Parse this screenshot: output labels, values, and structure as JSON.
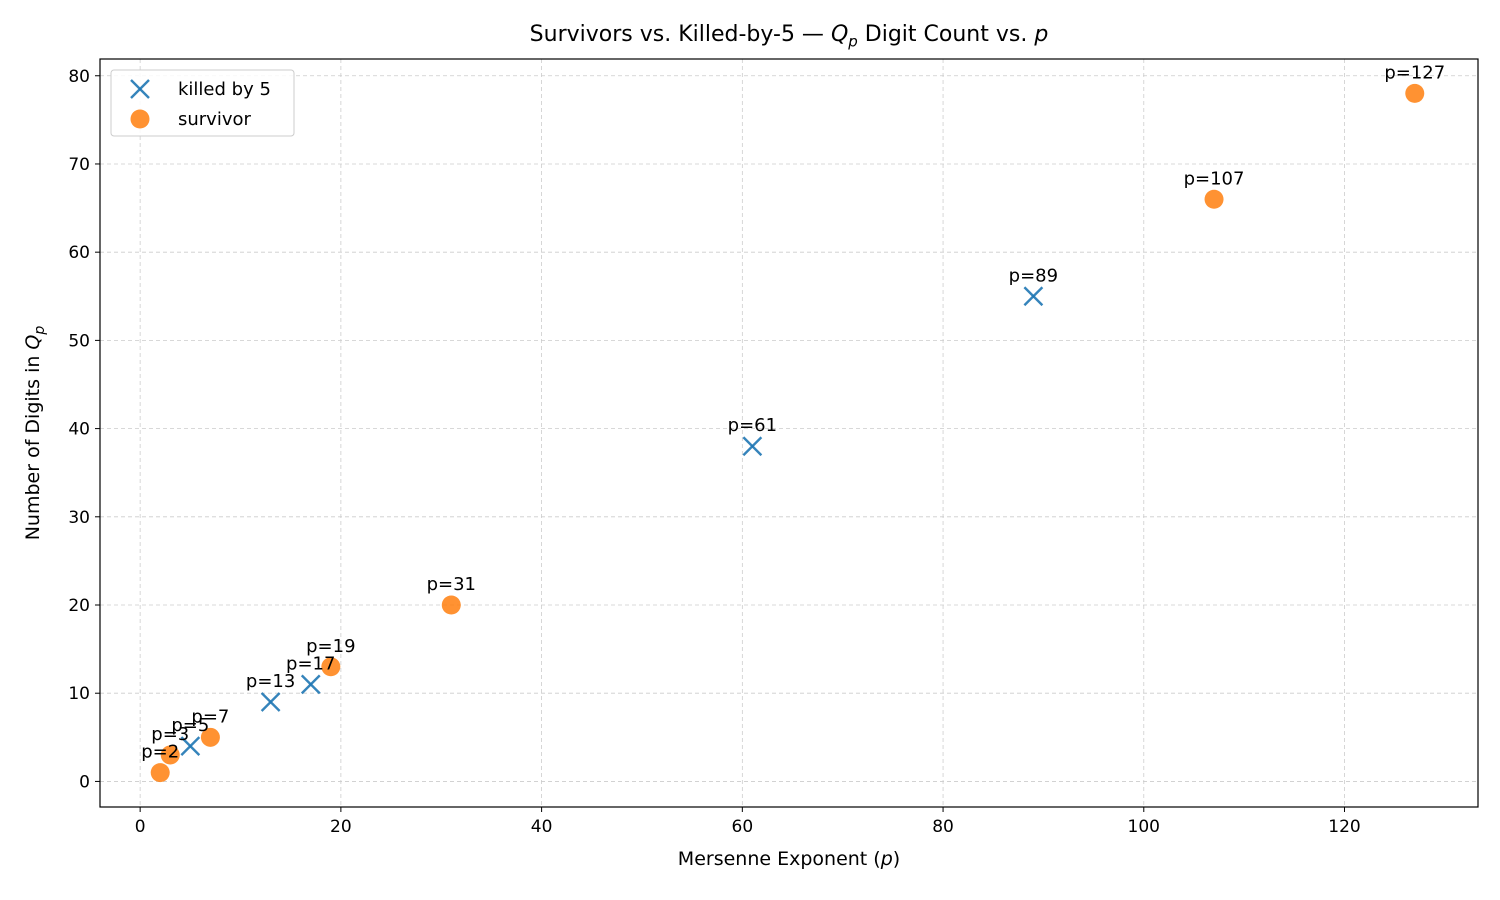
{
  "chart_data": {
    "type": "scatter",
    "title_prefix": "Survivors vs. Killed-by-5 — ",
    "title_math": "Q",
    "title_math_sub": "p",
    "title_middle": " Digit Count vs. ",
    "title_var": "p",
    "xlabel_prefix": "Mersenne Exponent (",
    "xlabel_var": "p",
    "xlabel_suffix": ")",
    "ylabel_prefix": "Number of Digits in ",
    "ylabel_math": "Q",
    "ylabel_math_sub": "p",
    "xlim": [
      -4,
      133.3
    ],
    "ylim": [
      -2.9,
      81.9
    ],
    "xticks": [
      0,
      20,
      40,
      60,
      80,
      100,
      120
    ],
    "yticks": [
      0,
      10,
      20,
      30,
      40,
      50,
      60,
      70,
      80
    ],
    "grid": true,
    "legend_position": "top-left",
    "series": [
      {
        "name": "killed by 5",
        "marker": "x",
        "color": "#1f77b4",
        "points": [
          {
            "x": 5,
            "y": 4,
            "label": "p=5"
          },
          {
            "x": 13,
            "y": 9,
            "label": "p=13"
          },
          {
            "x": 17,
            "y": 11,
            "label": "p=17"
          },
          {
            "x": 61,
            "y": 38,
            "label": "p=61"
          },
          {
            "x": 89,
            "y": 55,
            "label": "p=89"
          }
        ]
      },
      {
        "name": "survivor",
        "marker": "circle",
        "color": "#ff7f0e",
        "points": [
          {
            "x": 2,
            "y": 1,
            "label": "p=2"
          },
          {
            "x": 3,
            "y": 3,
            "label": "p=3"
          },
          {
            "x": 7,
            "y": 5,
            "label": "p=7"
          },
          {
            "x": 19,
            "y": 13,
            "label": "p=19"
          },
          {
            "x": 31,
            "y": 20,
            "label": "p=31"
          },
          {
            "x": 107,
            "y": 66,
            "label": "p=107"
          },
          {
            "x": 127,
            "y": 78,
            "label": "p=127"
          }
        ]
      }
    ]
  }
}
